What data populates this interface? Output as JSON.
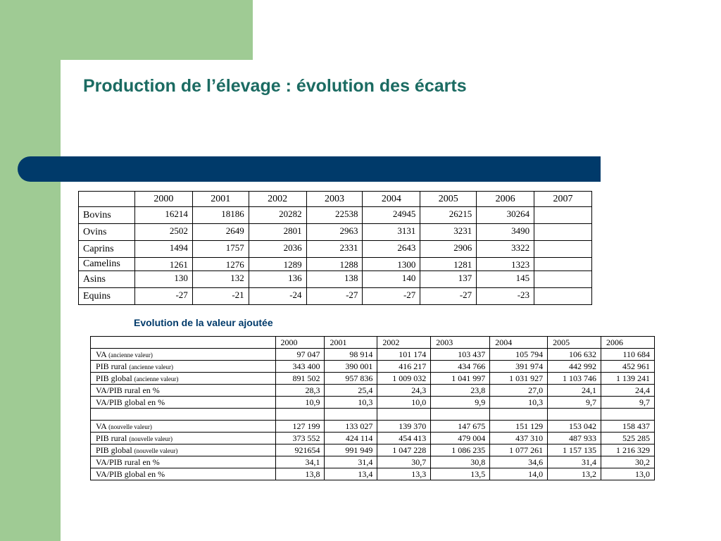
{
  "title": "Production de l’élevage : évolution des écarts",
  "table1": {
    "years": [
      "2000",
      "2001",
      "2002",
      "2003",
      "2004",
      "2005",
      "2006",
      "2007"
    ],
    "rows": [
      {
        "label": "Bovins",
        "values": [
          "16214",
          "18186",
          "20282",
          "22538",
          "24945",
          "26215",
          "30264",
          ""
        ]
      },
      {
        "label": "Ovins",
        "values": [
          "2502",
          "2649",
          "2801",
          "2963",
          "3131",
          "3231",
          "3490",
          ""
        ]
      },
      {
        "label": "Caprins",
        "values": [
          "1494",
          "1757",
          "2036",
          "2331",
          "2643",
          "2906",
          "3322",
          ""
        ]
      },
      {
        "label": "Camelins",
        "values": [
          "1261",
          "1276",
          "1289",
          "1288",
          "1300",
          "1281",
          "1323",
          ""
        ]
      },
      {
        "label": "Asins",
        "values": [
          "130",
          "132",
          "136",
          "138",
          "140",
          "137",
          "145",
          ""
        ]
      },
      {
        "label": "Equins",
        "values": [
          "-27",
          "-21",
          "-24",
          "-27",
          "-27",
          "-27",
          "-23",
          ""
        ]
      }
    ]
  },
  "subtitle": "Evolution de la valeur ajoutée",
  "table2": {
    "years": [
      "2000",
      "2001",
      "2002",
      "2003",
      "2004",
      "2005",
      "2006"
    ],
    "rows": [
      {
        "label": "VA",
        "note": "(ancienne valeur)",
        "values": [
          "97 047",
          "98 914",
          "101 174",
          "103 437",
          "105 794",
          "106 632",
          "110 684"
        ]
      },
      {
        "label": "PIB rural",
        "note": "(ancienne valeur)",
        "values": [
          "343 400",
          "390 001",
          "416 217",
          "434 766",
          "391 974",
          "442 992",
          "452 961"
        ]
      },
      {
        "label": "PIB global",
        "note": "(ancienne valeur)",
        "values": [
          "891 502",
          "957 836",
          "1 009 032",
          "1 041 997",
          "1 031 927",
          "1 103 746",
          "1 139 241"
        ]
      },
      {
        "label": "VA/PIB rural en %",
        "note": "",
        "values": [
          "28,3",
          "25,4",
          "24,3",
          "23,8",
          "27,0",
          "24,1",
          "24,4"
        ]
      },
      {
        "label": "VA/PIB global en %",
        "note": "",
        "values": [
          "10,9",
          "10,3",
          "10,0",
          "9,9",
          "10,3",
          "9,7",
          "9,7"
        ]
      },
      {
        "label": "",
        "note": "",
        "values": [
          "",
          "",
          "",
          "",
          "",
          "",
          ""
        ]
      },
      {
        "label": "VA",
        "note": "(nouvelle valeur)",
        "values": [
          "127 199",
          "133 027",
          "139 370",
          "147 675",
          "151 129",
          "153 042",
          "158 437"
        ]
      },
      {
        "label": "PIB rural",
        "note": "(nouvelle valeur)",
        "values": [
          "373 552",
          "424 114",
          "454 413",
          "479 004",
          "437 310",
          "487 933",
          "525 285"
        ]
      },
      {
        "label": "PIB global",
        "note": "(nouvelle valeur)",
        "values": [
          "921654",
          "991 949",
          "1 047 228",
          "1 086 235",
          "1 077 261",
          "1 157 135",
          "1 216 329"
        ]
      },
      {
        "label": "VA/PIB rural en %",
        "note": "",
        "values": [
          "34,1",
          "31,4",
          "30,7",
          "30,8",
          "34,6",
          "31,4",
          "30,2"
        ]
      },
      {
        "label": "VA/PIB global en %",
        "note": "",
        "values": [
          "13,8",
          "13,4",
          "13,3",
          "13,5",
          "14,0",
          "13,2",
          "13,0"
        ]
      }
    ]
  }
}
